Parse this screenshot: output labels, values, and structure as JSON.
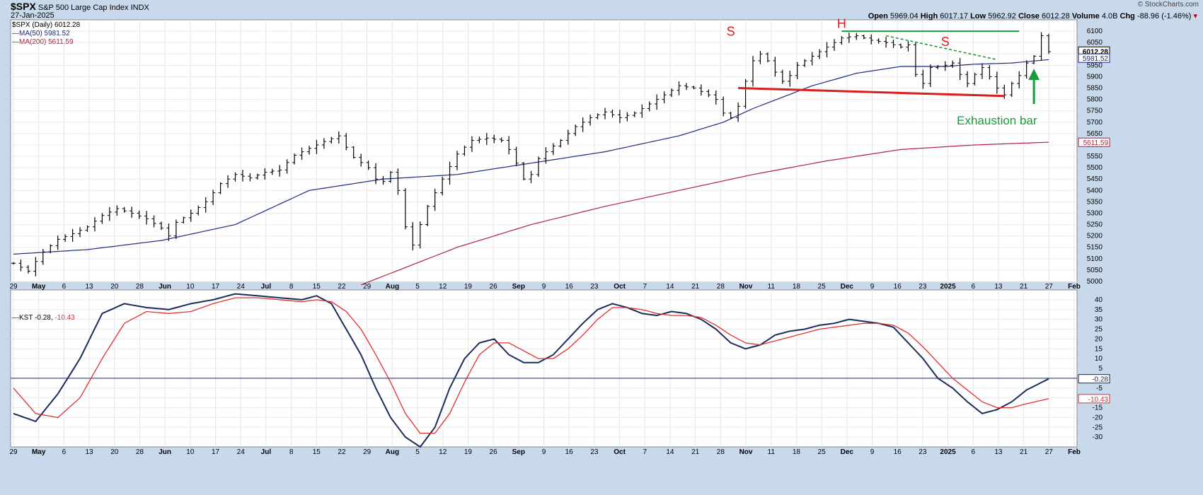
{
  "header": {
    "symbol": "$SPX",
    "name": "S&P 500 Large Cap Index",
    "exchange": "INDX",
    "date": "27-Jan-2025",
    "brand": "© StockCharts.com",
    "open_label": "Open",
    "open": "5969.04",
    "high_label": "High",
    "high": "6017.17",
    "low_label": "Low",
    "low": "5962.92",
    "close_label": "Close",
    "close": "6012.28",
    "volume_label": "Volume",
    "volume": "4.0B",
    "chg_label": "Chg",
    "chg": "-88.96 (-1.46%)"
  },
  "legend_price": {
    "series": "$SPX (Daily) 6012.28",
    "ma50": "MA(50) 5981.52",
    "ma200": "MA(200) 5611.59"
  },
  "legend_kst": {
    "label": "KST",
    "value1": "-0.28",
    "value2": "-10.43"
  },
  "colors": {
    "background": "#c9d9ec",
    "plot": "#ffffff",
    "bars": "#000000",
    "ma50": "#1b2a80",
    "ma200": "#b02040",
    "kst": "#1a2c5a",
    "kst_signal": "#e03030",
    "annotation_red": "#d81e1e",
    "annotation_green": "#1a9a3a"
  },
  "chart_data": [
    {
      "type": "ohlc",
      "title": "$SPX (Daily) 6012.28",
      "ylim": [
        5000,
        6150
      ],
      "yticks": [
        5000,
        5050,
        5100,
        5150,
        5200,
        5250,
        5300,
        5350,
        5400,
        5450,
        5500,
        5550,
        5600,
        5650,
        5700,
        5750,
        5800,
        5850,
        5900,
        5950,
        6000,
        6050,
        6100
      ],
      "xticks": [
        "29",
        "May",
        "6",
        "13",
        "20",
        "28",
        "Jun",
        "10",
        "17",
        "24",
        "Jul",
        "8",
        "15",
        "22",
        "29",
        "Aug",
        "5",
        "12",
        "19",
        "26",
        "Sep",
        "9",
        "16",
        "23",
        "Oct",
        "7",
        "14",
        "21",
        "28",
        "Nov",
        "11",
        "18",
        "25",
        "Dec",
        "9",
        "16",
        "23",
        "2025",
        "6",
        "13",
        "21",
        "27",
        "Feb"
      ],
      "price_path": [
        [
          0,
          5080
        ],
        [
          2,
          5045
        ],
        [
          4,
          5130
        ],
        [
          6,
          5185
        ],
        [
          8,
          5210
        ],
        [
          10,
          5240
        ],
        [
          12,
          5290
        ],
        [
          14,
          5320
        ],
        [
          16,
          5300
        ],
        [
          18,
          5275
        ],
        [
          20,
          5235
        ],
        [
          21,
          5200
        ],
        [
          22,
          5260
        ],
        [
          24,
          5300
        ],
        [
          26,
          5350
        ],
        [
          28,
          5430
        ],
        [
          30,
          5470
        ],
        [
          32,
          5455
        ],
        [
          34,
          5480
        ],
        [
          36,
          5490
        ],
        [
          38,
          5555
        ],
        [
          40,
          5585
        ],
        [
          42,
          5615
        ],
        [
          44,
          5640
        ],
        [
          45,
          5590
        ],
        [
          46,
          5545
        ],
        [
          48,
          5500
        ],
        [
          49,
          5450
        ],
        [
          50,
          5440
        ],
        [
          51,
          5480
        ],
        [
          52,
          5400
        ],
        [
          53,
          5240
        ],
        [
          54,
          5160
        ],
        [
          55,
          5250
        ],
        [
          56,
          5330
        ],
        [
          58,
          5450
        ],
        [
          60,
          5560
        ],
        [
          62,
          5620
        ],
        [
          64,
          5630
        ],
        [
          66,
          5620
        ],
        [
          67,
          5580
        ],
        [
          68,
          5520
        ],
        [
          69,
          5450
        ],
        [
          70,
          5470
        ],
        [
          71,
          5540
        ],
        [
          72,
          5570
        ],
        [
          74,
          5620
        ],
        [
          76,
          5680
        ],
        [
          78,
          5720
        ],
        [
          80,
          5745
        ],
        [
          82,
          5720
        ],
        [
          84,
          5740
        ],
        [
          86,
          5780
        ],
        [
          88,
          5820
        ],
        [
          90,
          5860
        ],
        [
          92,
          5850
        ],
        [
          94,
          5820
        ],
        [
          95,
          5800
        ],
        [
          96,
          5740
        ],
        [
          97,
          5720
        ],
        [
          98,
          5770
        ],
        [
          99,
          5880
        ],
        [
          100,
          5970
        ],
        [
          101,
          6000
        ],
        [
          102,
          5970
        ],
        [
          103,
          5920
        ],
        [
          104,
          5880
        ],
        [
          105,
          5905
        ],
        [
          106,
          5950
        ],
        [
          108,
          5990
        ],
        [
          110,
          6030
        ],
        [
          112,
          6070
        ],
        [
          114,
          6080
        ],
        [
          116,
          6060
        ],
        [
          118,
          6050
        ],
        [
          120,
          6030
        ],
        [
          121,
          6040
        ],
        [
          122,
          5910
        ],
        [
          123,
          5870
        ],
        [
          124,
          5940
        ],
        [
          126,
          5950
        ],
        [
          127,
          5960
        ],
        [
          128,
          5910
        ],
        [
          129,
          5870
        ],
        [
          130,
          5910
        ],
        [
          131,
          5940
        ],
        [
          132,
          5900
        ],
        [
          133,
          5850
        ],
        [
          134,
          5820
        ],
        [
          135,
          5870
        ],
        [
          136,
          5905
        ],
        [
          137,
          5960
        ],
        [
          138,
          5990
        ],
        [
          139,
          6080
        ],
        [
          140,
          6010
        ]
      ],
      "ma50": [
        [
          0,
          5120
        ],
        [
          10,
          5140
        ],
        [
          20,
          5180
        ],
        [
          30,
          5250
        ],
        [
          40,
          5400
        ],
        [
          50,
          5450
        ],
        [
          60,
          5470
        ],
        [
          70,
          5520
        ],
        [
          80,
          5570
        ],
        [
          90,
          5640
        ],
        [
          96,
          5700
        ],
        [
          100,
          5760
        ],
        [
          108,
          5860
        ],
        [
          114,
          5915
        ],
        [
          120,
          5945
        ],
        [
          126,
          5945
        ],
        [
          130,
          5955
        ],
        [
          135,
          5960
        ],
        [
          140,
          5975
        ]
      ],
      "ma200": [
        [
          47,
          4985
        ],
        [
          60,
          5150
        ],
        [
          70,
          5250
        ],
        [
          80,
          5330
        ],
        [
          90,
          5400
        ],
        [
          100,
          5470
        ],
        [
          110,
          5530
        ],
        [
          120,
          5580
        ],
        [
          130,
          5600
        ],
        [
          140,
          5612
        ]
      ],
      "annotations": [
        {
          "text": "S",
          "x": 97,
          "y": 6080
        },
        {
          "text": "H",
          "x": 112,
          "y": 6115
        },
        {
          "text": "S",
          "x": 126,
          "y": 6035
        },
        {
          "text": "Exhaustion bar",
          "x": 133,
          "y": 5690
        }
      ],
      "lines": {
        "neckline": {
          "color": "red",
          "from": [
            98,
            5850
          ],
          "to": [
            134,
            5815
          ]
        },
        "resistance": {
          "color": "green",
          "from": [
            112,
            6100
          ],
          "to": [
            136,
            6100
          ]
        },
        "downtrend": {
          "color": "green-dashed",
          "from": [
            118,
            6080
          ],
          "to": [
            133,
            5975
          ]
        },
        "arrow": {
          "color": "green",
          "from": [
            138,
            5780
          ],
          "to": [
            138,
            5935
          ]
        }
      },
      "last_close": 6012.28,
      "ma50_last": 5981.52,
      "ma200_last": 5611.59
    },
    {
      "type": "line",
      "title": "KST -0.28, -10.43",
      "ylim": [
        -35,
        45
      ],
      "yticks": [
        -30,
        -25,
        -20,
        -15,
        -10,
        -5,
        0,
        5,
        10,
        15,
        20,
        25,
        30,
        35,
        40
      ],
      "series": [
        {
          "name": "KST",
          "color": "#1a2c5a",
          "last": -0.28,
          "points": [
            [
              0,
              -18
            ],
            [
              3,
              -22
            ],
            [
              6,
              -8
            ],
            [
              9,
              10
            ],
            [
              12,
              33
            ],
            [
              15,
              38
            ],
            [
              18,
              36
            ],
            [
              21,
              35
            ],
            [
              24,
              38
            ],
            [
              27,
              40
            ],
            [
              30,
              43
            ],
            [
              33,
              42
            ],
            [
              36,
              41
            ],
            [
              39,
              40
            ],
            [
              41,
              42
            ],
            [
              43,
              38
            ],
            [
              45,
              25
            ],
            [
              47,
              12
            ],
            [
              49,
              -5
            ],
            [
              51,
              -20
            ],
            [
              53,
              -30
            ],
            [
              55,
              -35
            ],
            [
              57,
              -25
            ],
            [
              59,
              -5
            ],
            [
              61,
              10
            ],
            [
              63,
              18
            ],
            [
              65,
              20
            ],
            [
              67,
              12
            ],
            [
              69,
              8
            ],
            [
              71,
              8
            ],
            [
              73,
              12
            ],
            [
              75,
              20
            ],
            [
              77,
              28
            ],
            [
              79,
              35
            ],
            [
              81,
              38
            ],
            [
              83,
              36
            ],
            [
              85,
              33
            ],
            [
              87,
              32
            ],
            [
              89,
              34
            ],
            [
              91,
              33
            ],
            [
              93,
              30
            ],
            [
              95,
              25
            ],
            [
              97,
              18
            ],
            [
              99,
              15
            ],
            [
              101,
              17
            ],
            [
              103,
              22
            ],
            [
              105,
              24
            ],
            [
              107,
              25
            ],
            [
              109,
              27
            ],
            [
              111,
              28
            ],
            [
              113,
              30
            ],
            [
              115,
              29
            ],
            [
              117,
              28
            ],
            [
              119,
              26
            ],
            [
              121,
              18
            ],
            [
              123,
              10
            ],
            [
              125,
              0
            ],
            [
              127,
              -5
            ],
            [
              129,
              -12
            ],
            [
              131,
              -18
            ],
            [
              133,
              -16
            ],
            [
              135,
              -12
            ],
            [
              137,
              -6
            ],
            [
              140,
              -0.28
            ]
          ]
        },
        {
          "name": "",
          "color": "#e03030",
          "last": -10.43,
          "points": [
            [
              0,
              -5
            ],
            [
              3,
              -18
            ],
            [
              6,
              -20
            ],
            [
              9,
              -10
            ],
            [
              12,
              10
            ],
            [
              15,
              28
            ],
            [
              18,
              34
            ],
            [
              21,
              33
            ],
            [
              24,
              34
            ],
            [
              27,
              38
            ],
            [
              30,
              41
            ],
            [
              33,
              41
            ],
            [
              36,
              40
            ],
            [
              39,
              39
            ],
            [
              41,
              40
            ],
            [
              43,
              39
            ],
            [
              45,
              34
            ],
            [
              47,
              25
            ],
            [
              49,
              12
            ],
            [
              51,
              -2
            ],
            [
              53,
              -18
            ],
            [
              55,
              -28
            ],
            [
              57,
              -28
            ],
            [
              59,
              -18
            ],
            [
              61,
              -2
            ],
            [
              63,
              12
            ],
            [
              65,
              18
            ],
            [
              67,
              18
            ],
            [
              69,
              14
            ],
            [
              71,
              10
            ],
            [
              73,
              10
            ],
            [
              75,
              15
            ],
            [
              77,
              22
            ],
            [
              79,
              30
            ],
            [
              81,
              36
            ],
            [
              83,
              36
            ],
            [
              85,
              35
            ],
            [
              87,
              33
            ],
            [
              89,
              32
            ],
            [
              91,
              32
            ],
            [
              93,
              31
            ],
            [
              95,
              27
            ],
            [
              97,
              22
            ],
            [
              99,
              18
            ],
            [
              101,
              17
            ],
            [
              103,
              19
            ],
            [
              105,
              21
            ],
            [
              107,
              23
            ],
            [
              109,
              25
            ],
            [
              111,
              26
            ],
            [
              113,
              27
            ],
            [
              115,
              28
            ],
            [
              117,
              28
            ],
            [
              119,
              27
            ],
            [
              121,
              23
            ],
            [
              123,
              16
            ],
            [
              125,
              8
            ],
            [
              127,
              0
            ],
            [
              129,
              -6
            ],
            [
              131,
              -12
            ],
            [
              133,
              -15
            ],
            [
              135,
              -15
            ],
            [
              137,
              -13
            ],
            [
              140,
              -10.43
            ]
          ]
        }
      ],
      "zero_line": 0
    }
  ]
}
